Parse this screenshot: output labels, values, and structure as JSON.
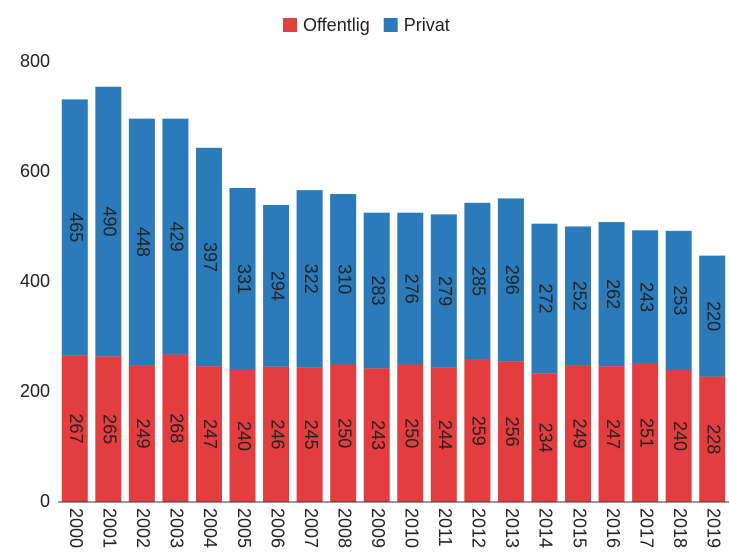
{
  "chart_data": {
    "type": "stacked_bar",
    "categories": [
      "2000",
      "2001",
      "2002",
      "2003",
      "2004",
      "2005",
      "2006",
      "2007",
      "2008",
      "2009",
      "2010",
      "2011",
      "2012",
      "2013",
      "2014",
      "2015",
      "2016",
      "2017",
      "2018",
      "2019"
    ],
    "series": [
      {
        "name": "Offentlig",
        "color": "#e43d40",
        "values": [
          267,
          265,
          249,
          268,
          247,
          240,
          246,
          245,
          250,
          243,
          250,
          244,
          259,
          256,
          234,
          249,
          247,
          251,
          240,
          228
        ]
      },
      {
        "name": "Privat",
        "color": "#2b7bba",
        "values": [
          465,
          490,
          448,
          429,
          397,
          331,
          294,
          322,
          310,
          283,
          276,
          279,
          285,
          296,
          272,
          252,
          262,
          243,
          253,
          220
        ]
      }
    ],
    "ylim": [
      0,
      800
    ],
    "yticks": [
      0,
      200,
      400,
      600,
      800
    ],
    "grid": false,
    "legend": "top"
  }
}
